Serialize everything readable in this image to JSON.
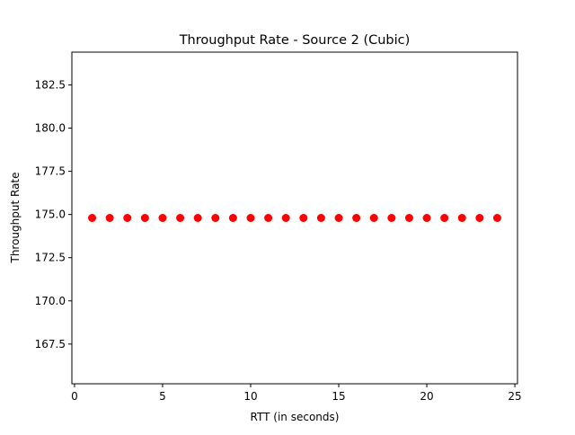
{
  "chart_data": {
    "type": "scatter",
    "title": "Throughput Rate - Source 2 (Cubic)",
    "xlabel": "RTT (in seconds)",
    "ylabel": "Throughput Rate",
    "xlim": [
      -0.15,
      25.15
    ],
    "ylim": [
      165.2,
      184.4
    ],
    "xticks": [
      0,
      5,
      10,
      15,
      20,
      25
    ],
    "xtick_labels": [
      "0",
      "5",
      "10",
      "15",
      "20",
      "25"
    ],
    "yticks": [
      167.5,
      170.0,
      172.5,
      175.0,
      177.5,
      180.0,
      182.5
    ],
    "ytick_labels": [
      "167.5",
      "170.0",
      "172.5",
      "175.0",
      "177.5",
      "180.0",
      "182.5"
    ],
    "grid": false,
    "legend": "none",
    "marker_color": "#ff0000",
    "series": [
      {
        "x": [
          1,
          2,
          3,
          4,
          5,
          6,
          7,
          8,
          9,
          10,
          11,
          12,
          13,
          14,
          15,
          16,
          17,
          18,
          19,
          20,
          21,
          22,
          23,
          24
        ],
        "y": [
          174.8,
          174.8,
          174.8,
          174.8,
          174.8,
          174.8,
          174.8,
          174.8,
          174.8,
          174.8,
          174.8,
          174.8,
          174.8,
          174.8,
          174.8,
          174.8,
          174.8,
          174.8,
          174.8,
          174.8,
          174.8,
          174.8,
          174.8,
          174.8
        ]
      }
    ]
  }
}
